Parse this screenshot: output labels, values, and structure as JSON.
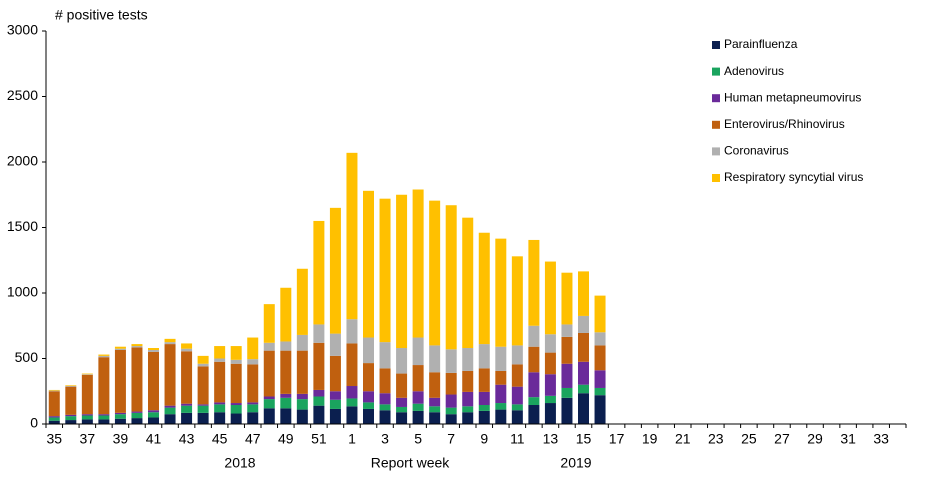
{
  "chart_data": {
    "type": "stacked_bar",
    "y_title": "# positive tests",
    "x_label": "Report week",
    "year_labels": [
      "2018",
      "2019"
    ],
    "categories": [
      "35",
      null,
      "37",
      null,
      "39",
      null,
      "41",
      null,
      "43",
      null,
      "45",
      null,
      "47",
      null,
      "49",
      null,
      "51",
      null,
      "1",
      null,
      "3",
      null,
      "5",
      null,
      "7",
      null,
      "9",
      null,
      "11",
      null,
      "13",
      null,
      "15",
      null,
      "17",
      null,
      "19",
      null,
      "21",
      null,
      "23",
      null,
      "25",
      null,
      "27",
      null,
      "29",
      null,
      "31",
      null,
      "33",
      null
    ],
    "series": [
      {
        "name": "Parainfluenza",
        "color": "#0b1f4f",
        "values": [
          25,
          30,
          35,
          35,
          40,
          45,
          50,
          75,
          85,
          85,
          90,
          80,
          90,
          120,
          120,
          110,
          140,
          115,
          135,
          115,
          105,
          90,
          100,
          90,
          75,
          90,
          100,
          110,
          105,
          145,
          160,
          200,
          235,
          220,
          null,
          null,
          null,
          null,
          null,
          null,
          null,
          null,
          null,
          null,
          null,
          null,
          null,
          null,
          null,
          null,
          null,
          null
        ]
      },
      {
        "name": "Adenovirus",
        "color": "#1aa45e",
        "values": [
          25,
          30,
          30,
          30,
          35,
          40,
          40,
          50,
          55,
          55,
          60,
          65,
          60,
          70,
          80,
          80,
          70,
          70,
          60,
          50,
          45,
          40,
          55,
          45,
          50,
          45,
          45,
          50,
          45,
          60,
          55,
          75,
          65,
          55,
          null,
          null,
          null,
          null,
          null,
          null,
          null,
          null,
          null,
          null,
          null,
          null,
          null,
          null,
          null,
          null,
          null,
          null
        ]
      },
      {
        "name": "Human metapneumovirus",
        "color": "#6a2a9a",
        "values": [
          10,
          10,
          10,
          10,
          10,
          10,
          15,
          15,
          15,
          10,
          15,
          15,
          15,
          20,
          30,
          40,
          50,
          65,
          95,
          85,
          85,
          70,
          95,
          65,
          100,
          110,
          100,
          140,
          135,
          190,
          165,
          185,
          175,
          135,
          null,
          null,
          null,
          null,
          null,
          null,
          null,
          null,
          null,
          null,
          null,
          null,
          null,
          null,
          null,
          null,
          null,
          null
        ]
      },
      {
        "name": "Enterovirus/Rhinovirus",
        "color": "#c0600f",
        "values": [
          190,
          215,
          300,
          435,
          480,
          490,
          445,
          470,
          400,
          290,
          310,
          300,
          290,
          350,
          330,
          330,
          360,
          270,
          325,
          215,
          190,
          185,
          200,
          195,
          165,
          160,
          180,
          105,
          170,
          195,
          165,
          205,
          220,
          190,
          null,
          null,
          null,
          null,
          null,
          null,
          null,
          null,
          null,
          null,
          null,
          null,
          null,
          null,
          null,
          null,
          null,
          null
        ]
      },
      {
        "name": "Coronavirus",
        "color": "#b0b0b0",
        "values": [
          5,
          5,
          5,
          10,
          10,
          10,
          15,
          15,
          20,
          20,
          25,
          30,
          40,
          60,
          70,
          120,
          140,
          170,
          185,
          195,
          200,
          195,
          210,
          205,
          180,
          175,
          185,
          185,
          145,
          160,
          140,
          95,
          130,
          100,
          null,
          null,
          null,
          null,
          null,
          null,
          null,
          null,
          null,
          null,
          null,
          null,
          null,
          null,
          null,
          null,
          null,
          null
        ]
      },
      {
        "name": "Respiratory syncytial virus",
        "color": "#ffc000",
        "values": [
          5,
          5,
          5,
          10,
          15,
          15,
          15,
          25,
          40,
          60,
          95,
          105,
          165,
          295,
          410,
          505,
          790,
          960,
          1270,
          1120,
          1095,
          1170,
          1130,
          1105,
          1100,
          995,
          850,
          825,
          680,
          655,
          555,
          395,
          340,
          280,
          null,
          null,
          null,
          null,
          null,
          null,
          null,
          null,
          null,
          null,
          null,
          null,
          null,
          null,
          null,
          null,
          null,
          null
        ]
      }
    ],
    "ylim": [
      0,
      3000
    ],
    "yticks": [
      0,
      500,
      1000,
      1500,
      2000,
      2500,
      3000
    ],
    "grid": false,
    "legend": "top-right"
  }
}
